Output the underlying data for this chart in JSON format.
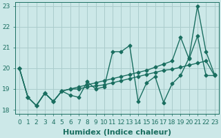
{
  "title": "",
  "xlabel": "Humidex (Indice chaleur)",
  "background_color": "#cce8e8",
  "grid_color": "#aacccc",
  "line_color": "#1a6e60",
  "xlim": [
    -0.5,
    23.5
  ],
  "ylim": [
    17.8,
    23.2
  ],
  "xticks": [
    0,
    1,
    2,
    3,
    4,
    5,
    6,
    7,
    8,
    9,
    10,
    11,
    12,
    13,
    14,
    15,
    16,
    17,
    18,
    19,
    20,
    21,
    22,
    23
  ],
  "yticks": [
    18,
    19,
    20,
    21,
    22,
    23
  ],
  "series": [
    [
      20.0,
      18.6,
      18.2,
      18.8,
      18.4,
      18.9,
      18.7,
      18.6,
      19.35,
      19.0,
      19.1,
      20.8,
      20.8,
      21.1,
      18.4,
      19.3,
      19.6,
      18.35,
      19.25,
      19.65,
      20.5,
      23.0,
      20.8,
      19.7
    ],
    [
      20.0,
      18.6,
      18.2,
      18.8,
      18.4,
      18.9,
      19.0,
      19.1,
      19.2,
      19.3,
      19.4,
      19.5,
      19.6,
      19.7,
      19.8,
      19.9,
      20.05,
      20.2,
      20.35,
      21.5,
      20.45,
      21.55,
      19.65,
      19.65
    ],
    [
      20.0,
      18.6,
      18.2,
      18.8,
      18.4,
      18.9,
      19.0,
      19.0,
      19.1,
      19.15,
      19.2,
      19.3,
      19.4,
      19.5,
      19.6,
      19.7,
      19.8,
      19.9,
      19.95,
      20.05,
      20.15,
      20.25,
      20.35,
      19.65
    ]
  ],
  "marker": "D",
  "markersize": 2.5,
  "linewidth": 1.0,
  "xlabel_fontsize": 8,
  "tick_fontsize": 6.5
}
